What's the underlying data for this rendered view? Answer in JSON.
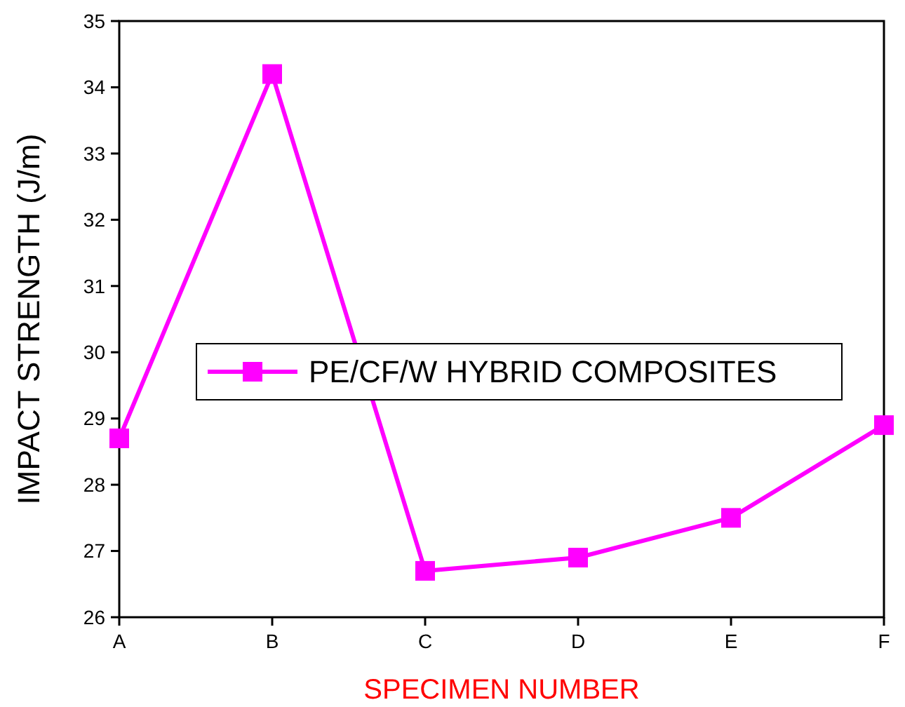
{
  "chart_data": {
    "type": "line",
    "xlabel": "SPECIMEN NUMBER",
    "ylabel": "IMPACT STRENGTH (J/m)",
    "categories": [
      "A",
      "B",
      "C",
      "D",
      "E",
      "F"
    ],
    "series": [
      {
        "name": "PE/CF/W HYBRID COMPOSITES",
        "color": "#ff00ff",
        "values": [
          28.7,
          34.2,
          26.7,
          26.9,
          27.5,
          28.9
        ]
      }
    ],
    "ylim": [
      26,
      35
    ],
    "yticks": [
      26,
      27,
      28,
      29,
      30,
      31,
      32,
      33,
      34,
      35
    ],
    "marker": "square",
    "line_style": "solid",
    "legend": "right",
    "grid": false
  }
}
